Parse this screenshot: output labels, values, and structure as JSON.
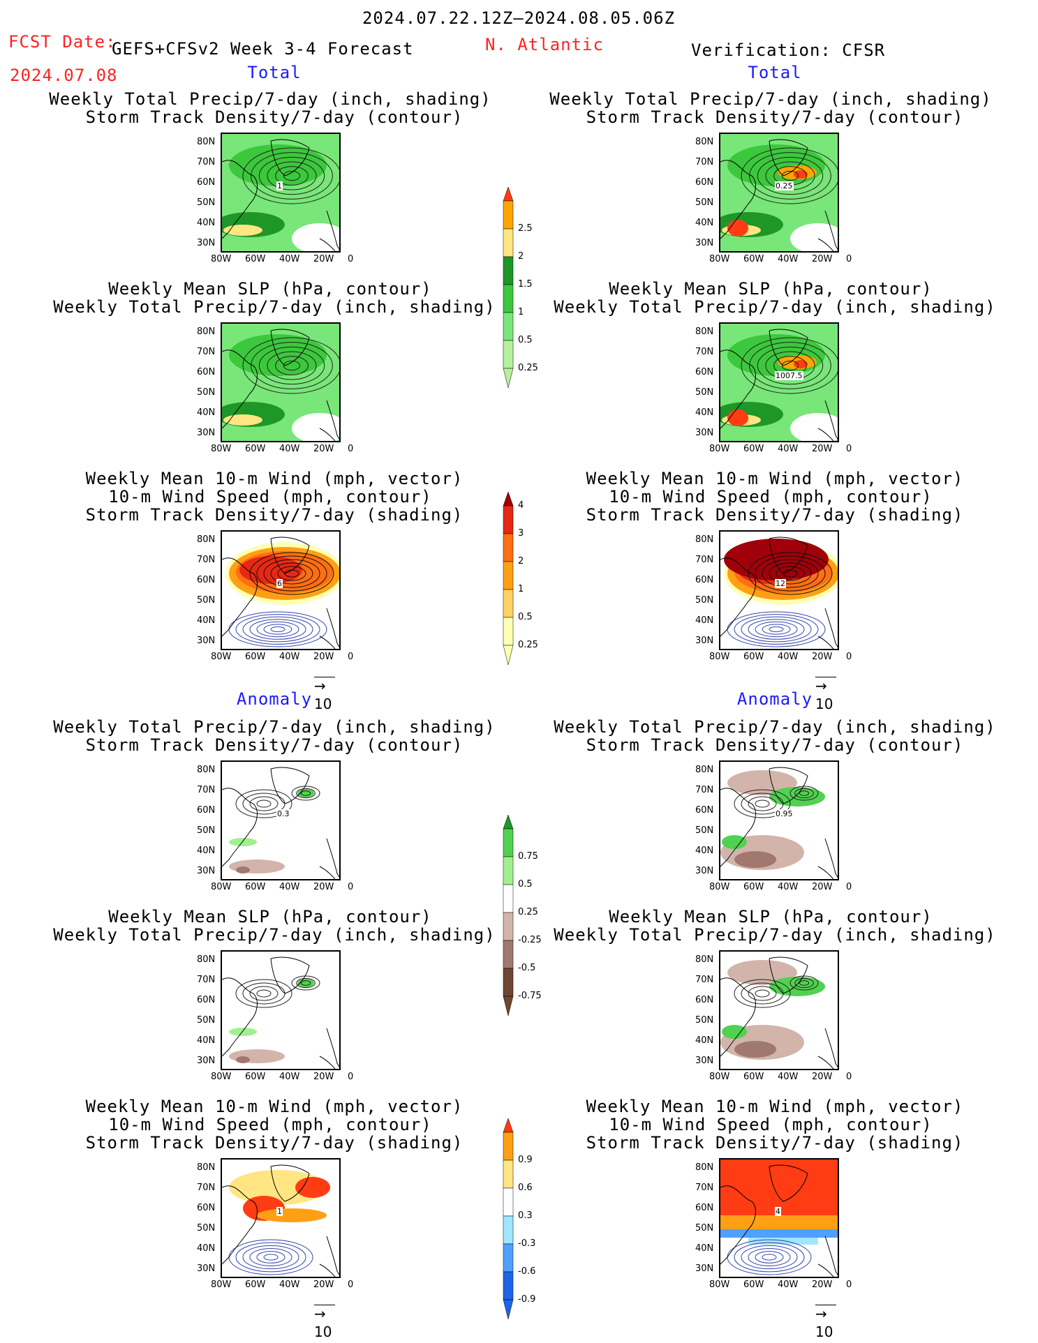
{
  "header": {
    "date_range": "2024.07.22.12Z–2024.08.05.06Z",
    "fcst_label": "FCST Date:",
    "fcst_model": "GEFS+CFSv2 Week 3-4 Forecast",
    "fcst_date": "2024.07.08",
    "region": "N. Atlantic",
    "verification": "Verification: CFSR",
    "total_left": "Total",
    "total_right": "Total",
    "anomaly_left": "Anomaly",
    "anomaly_right": "Anomaly"
  },
  "titles": {
    "precip_track_1": "Weekly Total Precip/7-day (inch, shading)",
    "precip_track_2": "Storm Track Density/7-day (contour)",
    "slp_1": "Weekly Mean SLP (hPa, contour)",
    "slp_2": "Weekly Total Precip/7-day (inch, shading)",
    "wind_1": "Weekly Mean 10-m Wind (mph, vector)",
    "wind_2": "10-m Wind Speed (mph, contour)",
    "wind_3": "Storm Track Density/7-day (shading)"
  },
  "axes": {
    "lat": [
      "80N",
      "70N",
      "60N",
      "50N",
      "40N",
      "30N"
    ],
    "lon": [
      "80W",
      "60W",
      "40W",
      "20W",
      "0"
    ]
  },
  "vector_ref": "10",
  "map_labels": {
    "r1_left": "1",
    "r1_right": "0.25",
    "r2_right": "1007.5",
    "r3_left": "6",
    "r3_right": "12",
    "r4_left": "0.3",
    "r4_right": "0.95",
    "r6_left": "1",
    "r6_right": "4"
  },
  "colorbars": {
    "precip": [
      "0.25",
      "0.5",
      "1",
      "1.5",
      "2",
      "2.5"
    ],
    "track": [
      "0.25",
      "0.5",
      "1",
      "2",
      "3",
      "4"
    ],
    "precip_anom": [
      "-0.75",
      "-0.5",
      "-0.25",
      "0.25",
      "0.5",
      "0.75"
    ],
    "track_anom": [
      "-0.9",
      "-0.6",
      "-0.3",
      "0.3",
      "0.6",
      "0.9"
    ]
  },
  "colors": {
    "precip": [
      "#b4f0a0",
      "#78e678",
      "#3cc83c",
      "#1e9628",
      "#ffe682",
      "#ffa500",
      "#ff3c14"
    ],
    "track": [
      "#ffffb4",
      "#ffd264",
      "#ffa014",
      "#ff6e14",
      "#e62814",
      "#a0000a"
    ],
    "precip_anom": [
      "#6e4632",
      "#a0786e",
      "#d2b4aa",
      "#ffffff",
      "#a0f090",
      "#50d250",
      "#1e9628"
    ],
    "track_anom": [
      "#1e64e6",
      "#50a0ff",
      "#a0e6ff",
      "#ffffff",
      "#ffe682",
      "#ffa014",
      "#ff3c14"
    ]
  }
}
